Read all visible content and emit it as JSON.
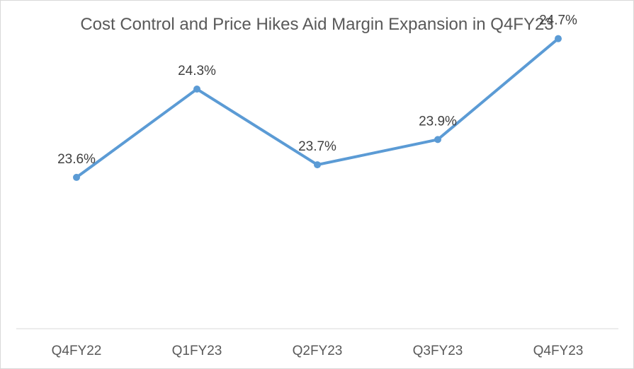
{
  "chart_data": {
    "type": "line",
    "title": "Cost Control and Price Hikes Aid Margin Expansion in Q4FY23",
    "categories": [
      "Q4FY22",
      "Q1FY23",
      "Q2FY23",
      "Q3FY23",
      "Q4FY23"
    ],
    "series": [
      {
        "values": [
          23.6,
          24.3,
          23.7,
          23.9,
          24.7
        ],
        "labels": [
          "23.6%",
          "24.3%",
          "23.7%",
          "23.9%",
          "24.7%"
        ],
        "color": "#5b9bd5"
      }
    ],
    "ylim": [
      22.4,
      24.9
    ],
    "xlabel": "",
    "ylabel": "",
    "grid": false,
    "legend": "none",
    "axis_color": "#d9d9d9"
  }
}
